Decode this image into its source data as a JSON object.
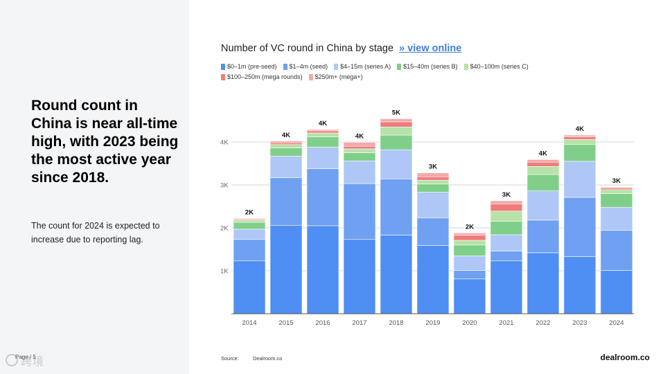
{
  "slide": {
    "headline": "Round count in China is near all-time high, with 2023 being the most active year since 2018.",
    "subtext": "The count for 2024 is expected to increase due to reporting lag.",
    "page_label": "Page / 5",
    "watermark": "跨境",
    "source_label": "Source:",
    "source_value": "Dealroom.co",
    "brand": "dealroom.co"
  },
  "chart_data": {
    "type": "bar",
    "stacked": true,
    "title": "Number of VC round in China by stage",
    "link_text": "» view online",
    "xlabel": "",
    "ylabel": "",
    "ylim": [
      0,
      4800
    ],
    "yticks": [
      1000,
      2000,
      3000,
      4000
    ],
    "ytick_labels": [
      "1K",
      "2K",
      "3K",
      "4K"
    ],
    "categories": [
      "2014",
      "2015",
      "2016",
      "2017",
      "2018",
      "2019",
      "2020",
      "2021",
      "2022",
      "2023",
      "2024"
    ],
    "series": [
      {
        "name": "$0–1m (pre-seed)",
        "color": "#4f8ef2",
        "values": [
          1230,
          2060,
          2050,
          1730,
          1830,
          1590,
          810,
          1230,
          1420,
          1330,
          1010
        ]
      },
      {
        "name": "$1–4m (seed)",
        "color": "#6fa0f1",
        "values": [
          500,
          1110,
          1330,
          1300,
          1310,
          640,
          200,
          230,
          760,
          1380,
          930
        ]
      },
      {
        "name": "$4–15m (series A)",
        "color": "#aec7f7",
        "values": [
          240,
          500,
          500,
          530,
          680,
          600,
          340,
          380,
          680,
          840,
          540
        ]
      },
      {
        "name": "$15–40m (series B)",
        "color": "#7fcf8a",
        "values": [
          160,
          190,
          240,
          190,
          340,
          190,
          250,
          310,
          380,
          390,
          320
        ]
      },
      {
        "name": "$40–100m (series C)",
        "color": "#b7e2a9",
        "values": [
          50,
          80,
          90,
          90,
          190,
          90,
          110,
          240,
          190,
          120,
          90
        ]
      },
      {
        "name": "$100–250m (mega rounds)",
        "color": "#ef7c7c",
        "values": [
          20,
          40,
          50,
          60,
          120,
          80,
          120,
          170,
          100,
          60,
          40
        ]
      },
      {
        "name": "$250m+ (mega+)",
        "color": "#f4a9a9",
        "values": [
          20,
          40,
          30,
          90,
          70,
          90,
          50,
          70,
          60,
          40,
          20
        ]
      }
    ],
    "totals_labels": [
      "2K",
      "4K",
      "4K",
      "4K",
      "5K",
      "3K",
      "2K",
      "3K",
      "4K",
      "4K",
      "3K"
    ],
    "grid": true
  }
}
